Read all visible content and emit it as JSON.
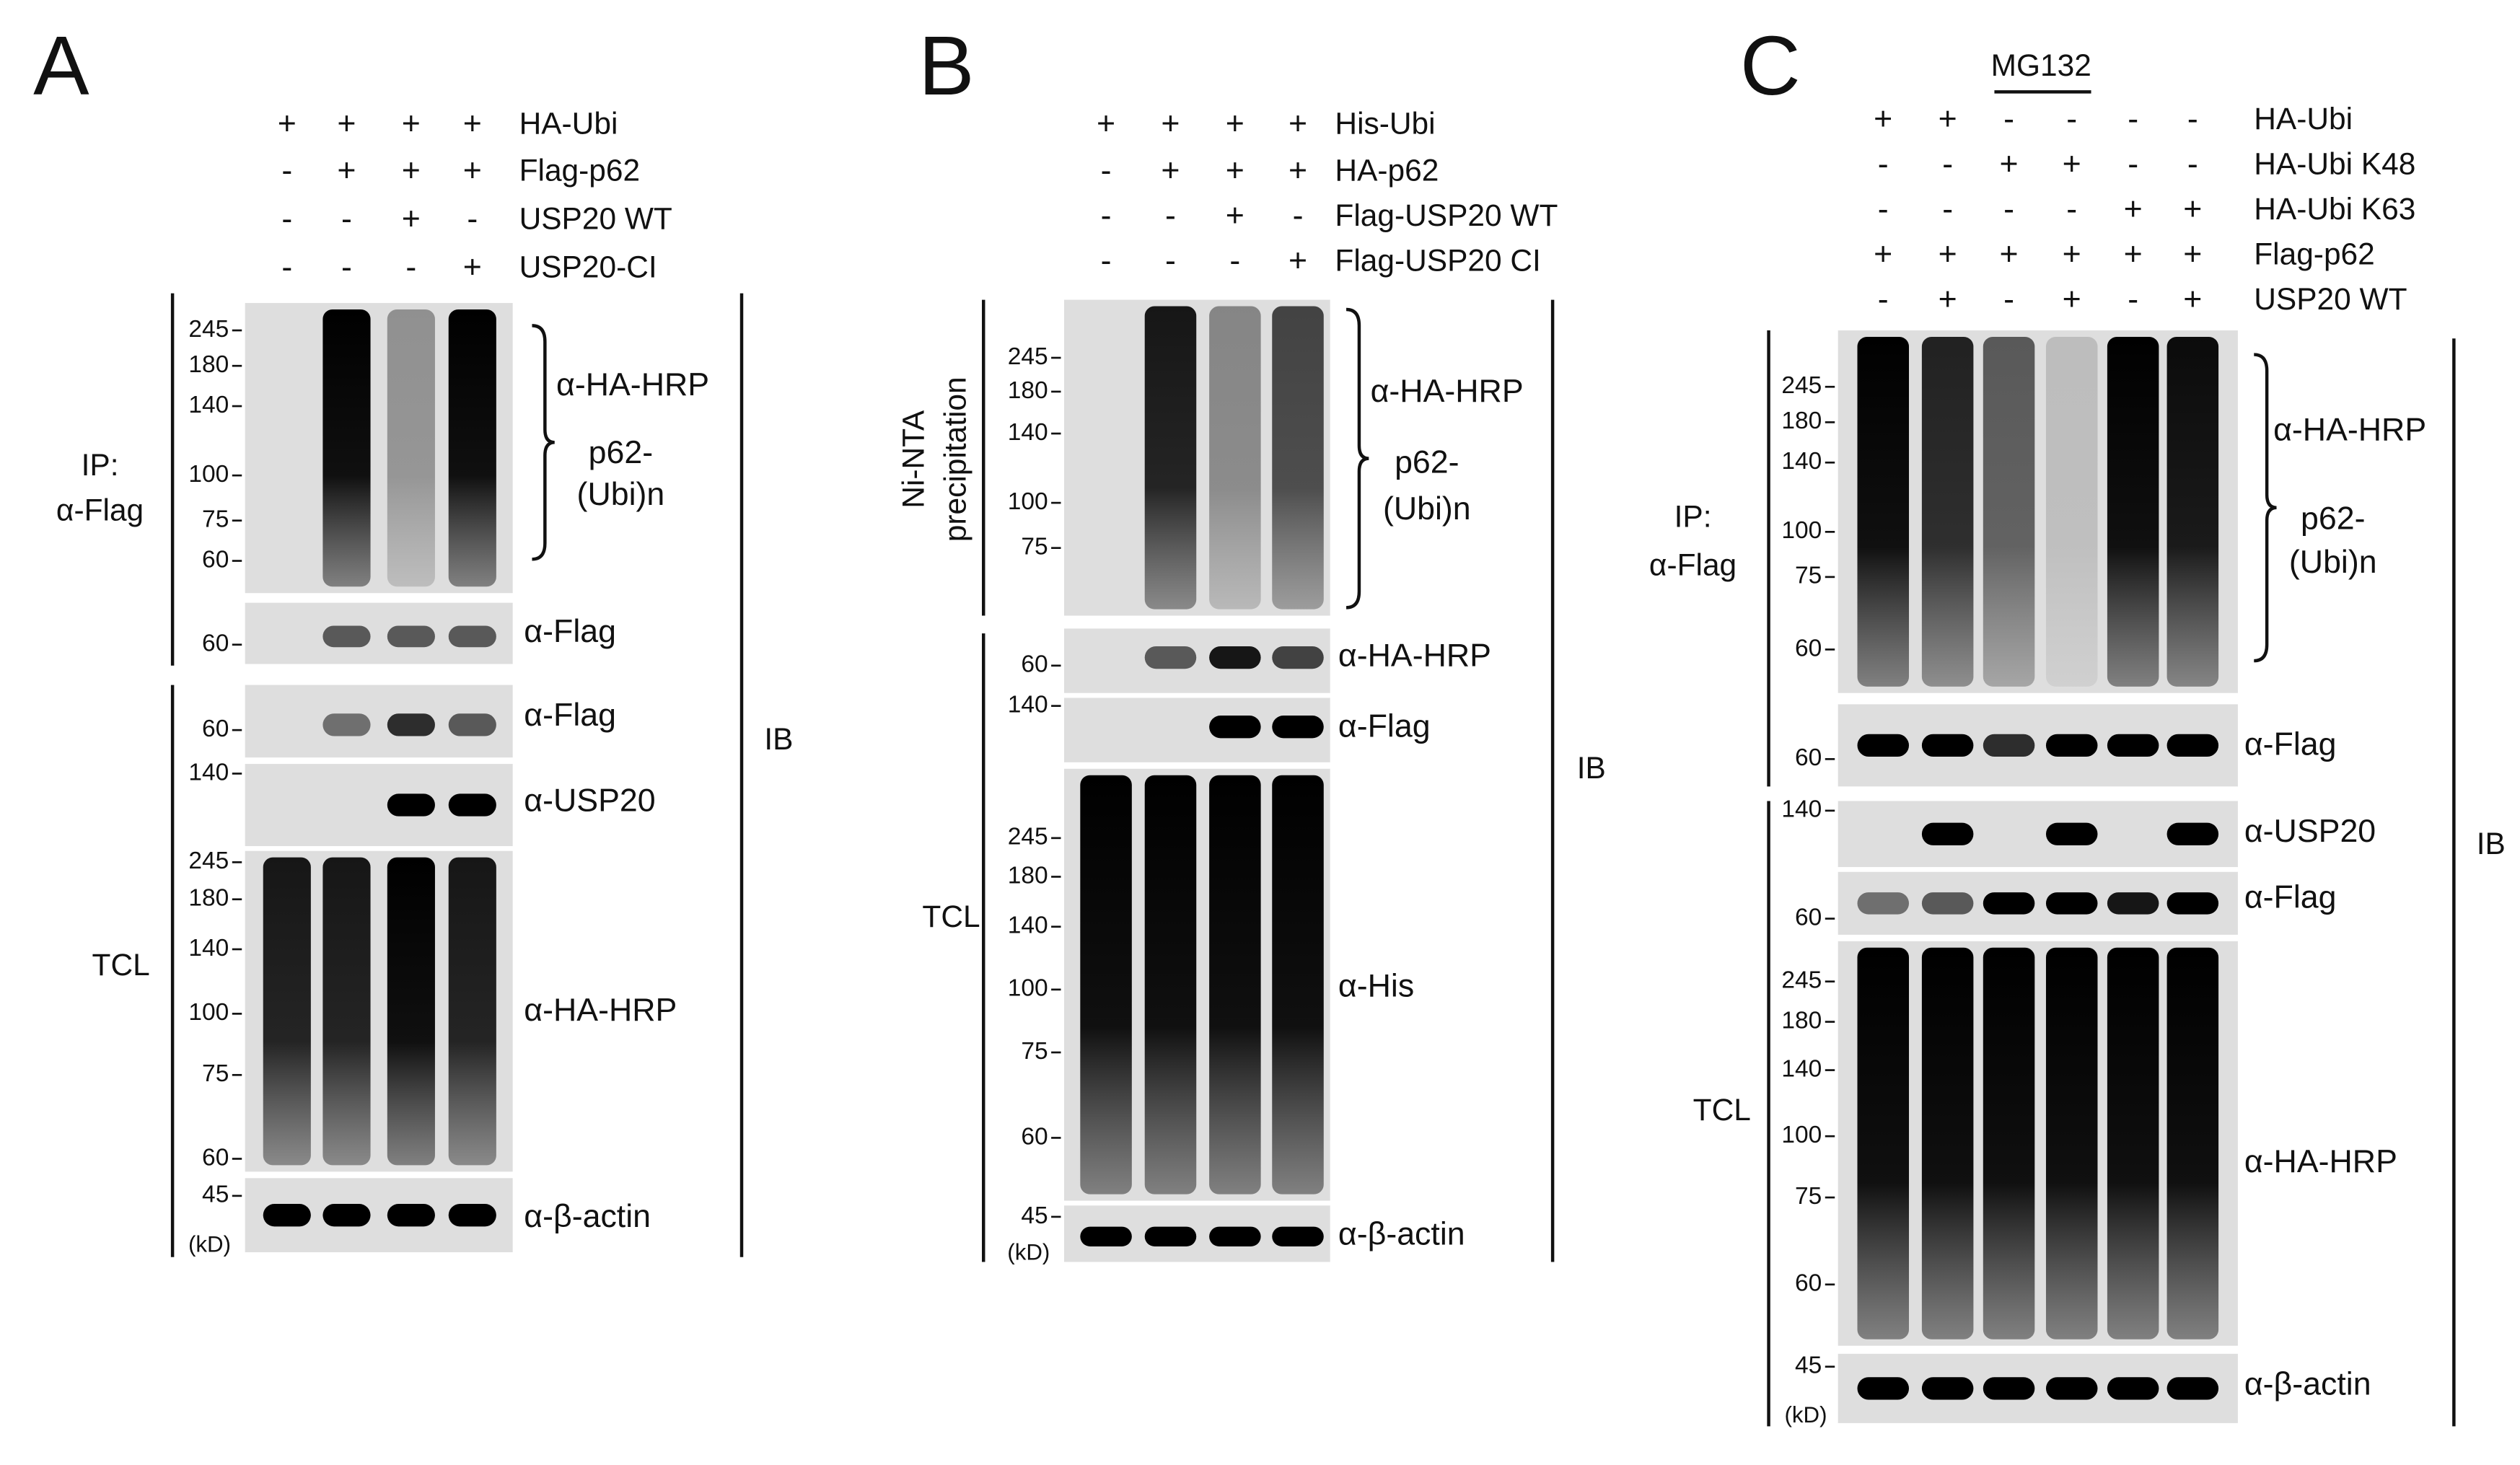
{
  "panels": [
    {
      "label": "A",
      "conditions": [
        {
          "name": "HA-Ubi",
          "lanes": [
            "+",
            "+",
            "+",
            "+"
          ]
        },
        {
          "name": "Flag-p62",
          "lanes": [
            "-",
            "+",
            "+",
            "+"
          ]
        },
        {
          "name": "USP20 WT",
          "lanes": [
            "-",
            "-",
            "+",
            "-"
          ]
        },
        {
          "name": "USP20-CI",
          "lanes": [
            "-",
            "-",
            "-",
            "+"
          ]
        }
      ],
      "sections": [
        {
          "label": [
            "IP:",
            "α-Flag"
          ]
        },
        {
          "label": [
            "TCL"
          ]
        }
      ],
      "blots": [
        {
          "antibody": "α-HA-HRP",
          "markers": [
            245,
            180,
            140,
            100,
            75,
            60
          ]
        },
        {
          "antibody": "α-Flag",
          "markers": [
            60
          ]
        },
        {
          "antibody": "α-Flag",
          "markers": [
            60
          ]
        },
        {
          "antibody": "α-USP20",
          "markers": [
            140
          ]
        },
        {
          "antibody": "α-HA-HRP",
          "markers": [
            245,
            180,
            140,
            100,
            75,
            60
          ]
        },
        {
          "antibody": "α-β-actin",
          "markers": [
            45
          ]
        }
      ],
      "bracket_label": [
        "p62-",
        "(Ubi)n"
      ],
      "unit": "(kD)",
      "ib": "IB"
    },
    {
      "label": "B",
      "conditions": [
        {
          "name": "His-Ubi",
          "lanes": [
            "+",
            "+",
            "+",
            "+"
          ]
        },
        {
          "name": "HA-p62",
          "lanes": [
            "-",
            "+",
            "+",
            "+"
          ]
        },
        {
          "name": "Flag-USP20 WT",
          "lanes": [
            "-",
            "-",
            "+",
            "-"
          ]
        },
        {
          "name": "Flag-USP20 CI",
          "lanes": [
            "-",
            "-",
            "-",
            "+"
          ]
        }
      ],
      "sections": [
        {
          "label": [
            "Ni-NTA",
            "precipitation"
          ]
        },
        {
          "label": [
            "TCL"
          ]
        }
      ],
      "blots": [
        {
          "antibody": "α-HA-HRP",
          "markers": [
            245,
            180,
            140,
            100,
            75
          ]
        },
        {
          "antibody": "α-HA-HRP",
          "markers": [
            60
          ]
        },
        {
          "antibody": "α-Flag",
          "markers": [
            140
          ]
        },
        {
          "antibody": "α-His",
          "markers": [
            245,
            180,
            140,
            100,
            75,
            60
          ]
        },
        {
          "antibody": "α-β-actin",
          "markers": [
            45
          ]
        }
      ],
      "bracket_label": [
        "p62-",
        "(Ubi)n"
      ],
      "unit": "(kD)",
      "ib": "IB"
    },
    {
      "label": "C",
      "mg132": "MG132",
      "conditions": [
        {
          "name": "HA-Ubi",
          "lanes": [
            "+",
            "+",
            "-",
            "-",
            "-",
            "-"
          ]
        },
        {
          "name": "HA-Ubi K48",
          "lanes": [
            "-",
            "-",
            "+",
            "+",
            "-",
            "-"
          ]
        },
        {
          "name": "HA-Ubi K63",
          "lanes": [
            "-",
            "-",
            "-",
            "-",
            "+",
            "+"
          ]
        },
        {
          "name": "Flag-p62",
          "lanes": [
            "+",
            "+",
            "+",
            "+",
            "+",
            "+"
          ]
        },
        {
          "name": "USP20 WT",
          "lanes": [
            "-",
            "+",
            "-",
            "+",
            "-",
            "+"
          ]
        }
      ],
      "sections": [
        {
          "label": [
            "IP:",
            "α-Flag"
          ]
        },
        {
          "label": [
            "TCL"
          ]
        }
      ],
      "blots": [
        {
          "antibody": "α-HA-HRP",
          "markers": [
            245,
            180,
            140,
            100,
            75,
            60
          ]
        },
        {
          "antibody": "α-Flag",
          "markers": [
            60
          ]
        },
        {
          "antibody": "α-USP20",
          "markers": [
            140
          ]
        },
        {
          "antibody": "α-Flag",
          "markers": [
            60
          ]
        },
        {
          "antibody": "α-HA-HRP",
          "markers": [
            245,
            180,
            140,
            100,
            75,
            60
          ]
        },
        {
          "antibody": "α-β-actin",
          "markers": [
            45
          ]
        }
      ],
      "bracket_label": [
        "p62-",
        "(Ubi)n"
      ],
      "unit": "(kD)",
      "ib": "IB"
    }
  ]
}
